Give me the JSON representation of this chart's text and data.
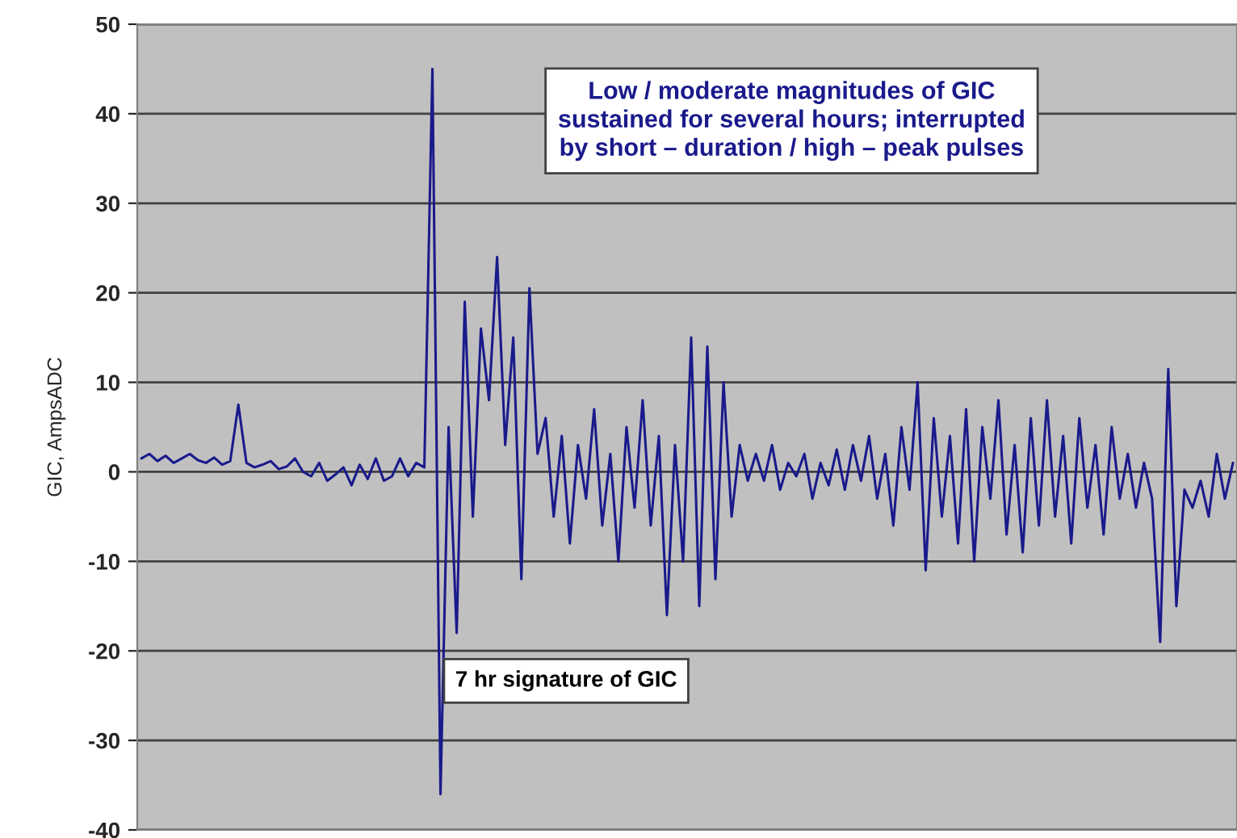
{
  "chart_data": {
    "type": "line",
    "ylabel": "GIC, AmpsADC",
    "categories": [
      null,
      null,
      null,
      null,
      null,
      null,
      null,
      null,
      null,
      null,
      null,
      null,
      null,
      null,
      null,
      null,
      null,
      null,
      null,
      null,
      null,
      null,
      null,
      null,
      null,
      null,
      null,
      null,
      null,
      null,
      null,
      null,
      null,
      null,
      null,
      null,
      null,
      null,
      null,
      null,
      null,
      null,
      null,
      null,
      null,
      null,
      null,
      null,
      null,
      null,
      null,
      null,
      null,
      null,
      null,
      null,
      null,
      null,
      null,
      null,
      null,
      null,
      null,
      null,
      null,
      null,
      null,
      null,
      null,
      null,
      null,
      null,
      null,
      null,
      null,
      null,
      null,
      null,
      null,
      null,
      null,
      null,
      null,
      null,
      null,
      null,
      null,
      null,
      null,
      null,
      null,
      null,
      null,
      null,
      null,
      null,
      null,
      null,
      null,
      null,
      null,
      null,
      null,
      null,
      null,
      null,
      null,
      null,
      null,
      null,
      null,
      null,
      null,
      null,
      null,
      null,
      null,
      null,
      null,
      null,
      null,
      null,
      null,
      null,
      null,
      null,
      null,
      null,
      null,
      null,
      null,
      null,
      null,
      null,
      null,
      null
    ],
    "series": [
      {
        "color": "#1a1a8c",
        "values": [
          1.5,
          2,
          1.2,
          1.8,
          1,
          1.5,
          2,
          1.3,
          1,
          1.6,
          0.8,
          1.2,
          7.5,
          1,
          0.5,
          0.8,
          1.2,
          0.3,
          0.6,
          1.5,
          0,
          -0.5,
          1,
          -1,
          -0.3,
          0.5,
          -1.5,
          0.8,
          -0.8,
          1.5,
          -1,
          -0.5,
          1.5,
          -0.5,
          1,
          0.5,
          45,
          -36,
          5,
          -18,
          19,
          -5,
          16,
          8,
          24,
          3,
          15,
          -12,
          20.5,
          2,
          6,
          -5,
          4,
          -8,
          3,
          -3,
          7,
          -6,
          2,
          -10,
          5,
          -4,
          8,
          -6,
          4,
          -16,
          3,
          -10,
          15,
          -15,
          14,
          -12,
          10,
          -5,
          3,
          -1,
          2,
          -1,
          3,
          -2,
          1,
          -0.5,
          2,
          -3,
          1,
          -1.5,
          2.5,
          -2,
          3,
          -1,
          4,
          -3,
          2,
          -6,
          5,
          -2,
          10,
          -11,
          6,
          -5,
          4,
          -8,
          7,
          -10,
          5,
          -3,
          8,
          -7,
          3,
          -9,
          6,
          -6,
          8,
          -5,
          4,
          -8,
          6,
          -4,
          3,
          -7,
          5,
          -3,
          2,
          -4,
          1,
          -3,
          -19,
          11.5,
          -15,
          -2,
          -4,
          -1,
          -5,
          2,
          -3,
          1
        ]
      }
    ],
    "ylim": [
      -40,
      50
    ],
    "yticks": [
      -40,
      -30,
      -20,
      -10,
      0,
      10,
      20,
      30,
      40,
      50
    ],
    "grid": "y",
    "marker": "none",
    "line_style": "solid",
    "annotations": [
      "Low / moderate magnitudes of GIC\nsustained for several hours; interrupted\nby short – duration / high – peak pulses",
      "7 hr signature of GIC"
    ]
  }
}
